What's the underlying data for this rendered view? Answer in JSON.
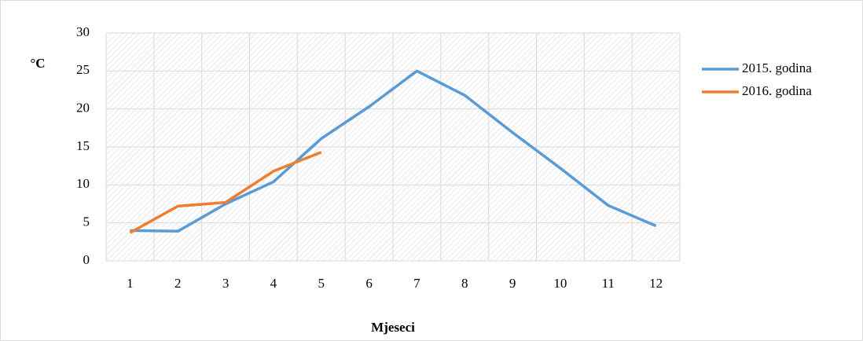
{
  "chart_data": {
    "type": "line",
    "y_label": "°C",
    "x_label": "Mjeseci",
    "categories": [
      "1",
      "2",
      "3",
      "4",
      "5",
      "6",
      "7",
      "8",
      "9",
      "10",
      "11",
      "12"
    ],
    "series": [
      {
        "name": "2015. godina",
        "color": "#5b9bd5",
        "values": [
          4.0,
          3.9,
          7.5,
          10.4,
          16.1,
          20.3,
          25.0,
          21.8,
          16.9,
          12.2,
          7.3,
          4.6
        ]
      },
      {
        "name": "2016. godina",
        "color": "#ed7d31",
        "values": [
          3.7,
          7.2,
          7.7,
          11.8,
          14.3,
          null,
          null,
          null,
          null,
          null,
          null,
          null
        ]
      }
    ],
    "ylim": [
      0,
      30
    ],
    "yticks": [
      0,
      5,
      10,
      15,
      20,
      25,
      30
    ],
    "grid": true,
    "legend": "right"
  }
}
